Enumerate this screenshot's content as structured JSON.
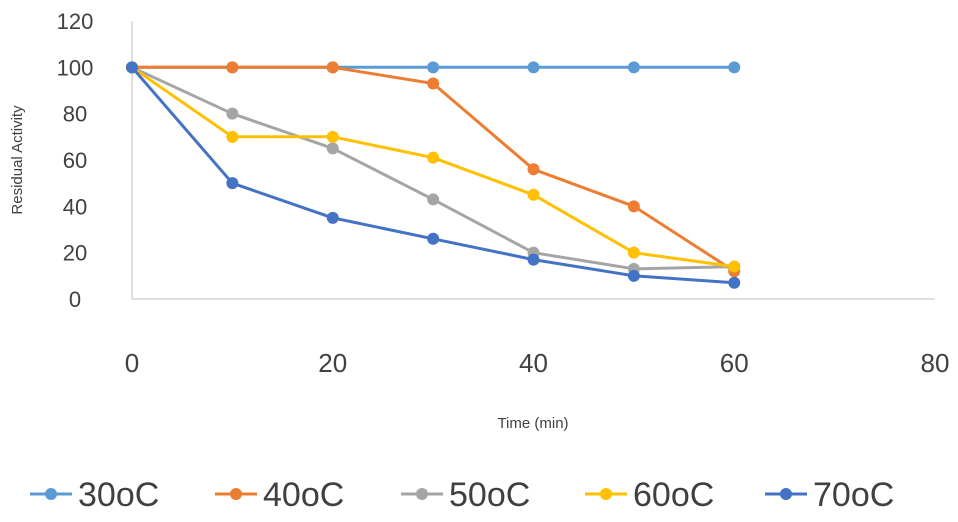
{
  "chart_data": {
    "type": "line",
    "title": "",
    "xlabel": "Time (min)",
    "ylabel": "Residual Activity",
    "xlim": [
      0,
      80
    ],
    "ylim": [
      0,
      120
    ],
    "xticks": [
      0,
      20,
      40,
      60,
      80
    ],
    "yticks": [
      0,
      20,
      40,
      60,
      80,
      100,
      120
    ],
    "grid": false,
    "legend_position": "bottom",
    "x": [
      0,
      10,
      20,
      30,
      40,
      50,
      60
    ],
    "series": [
      {
        "name": "30oC",
        "color": "#5B9BD5",
        "values": [
          100,
          100,
          100,
          100,
          100,
          100,
          100
        ]
      },
      {
        "name": "40oC",
        "color": "#ED7D31",
        "values": [
          100,
          100,
          100,
          93,
          56,
          40,
          12
        ]
      },
      {
        "name": "50oC",
        "color": "#A5A5A5",
        "values": [
          100,
          80,
          65,
          43,
          20,
          13,
          14
        ]
      },
      {
        "name": "60oC",
        "color": "#FFC000",
        "values": [
          100,
          70,
          70,
          61,
          45,
          20,
          14
        ]
      },
      {
        "name": "70oC",
        "color": "#4472C4",
        "values": [
          100,
          50,
          35,
          26,
          17,
          10,
          7
        ]
      }
    ]
  }
}
